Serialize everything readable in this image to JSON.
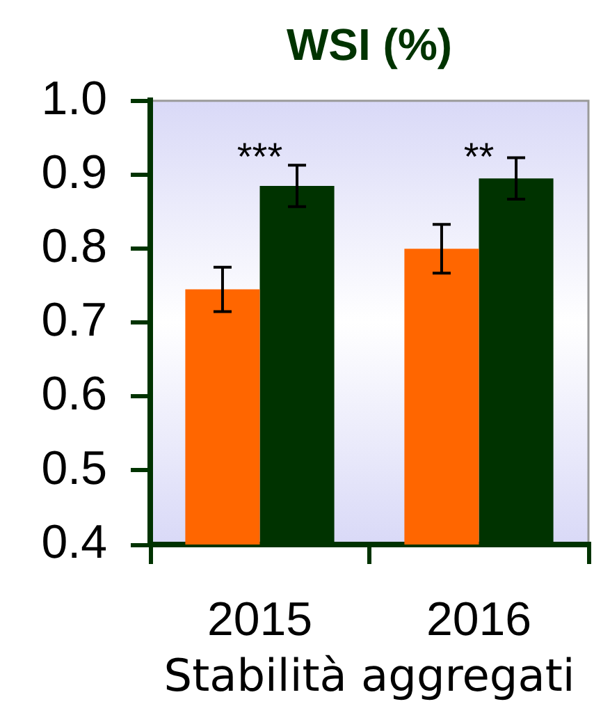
{
  "chart_data": {
    "type": "bar",
    "title": "WSI (%)",
    "xlabel": "Stabilità aggregati",
    "categories": [
      "2015",
      "2016"
    ],
    "series": [
      {
        "color": "#ff6600",
        "values": [
          0.745,
          0.8
        ],
        "errors": [
          0.03,
          0.033
        ]
      },
      {
        "color": "#003300",
        "values": [
          0.885,
          0.895
        ],
        "errors": [
          0.028,
          0.028
        ]
      }
    ],
    "ylim": [
      0.4,
      1.0
    ],
    "yticks": [
      0.4,
      0.5,
      0.6,
      0.7,
      0.8,
      0.9,
      {
        "value": 1,
        "label": "1.0"
      }
    ],
    "annotations": [
      "***",
      "**"
    ]
  }
}
